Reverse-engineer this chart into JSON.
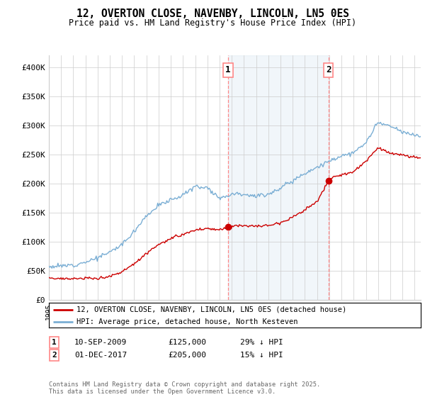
{
  "title": "12, OVERTON CLOSE, NAVENBY, LINCOLN, LN5 0ES",
  "subtitle": "Price paid vs. HM Land Registry's House Price Index (HPI)",
  "ylabel_ticks": [
    "£0",
    "£50K",
    "£100K",
    "£150K",
    "£200K",
    "£250K",
    "£300K",
    "£350K",
    "£400K"
  ],
  "ytick_values": [
    0,
    50000,
    100000,
    150000,
    200000,
    250000,
    300000,
    350000,
    400000
  ],
  "ylim": [
    0,
    420000
  ],
  "xlim_start": 1995.0,
  "xlim_end": 2025.5,
  "purchase1_date": 2009.7,
  "purchase1_price": 125000,
  "purchase2_date": 2017.92,
  "purchase2_price": 205000,
  "legend_line1": "12, OVERTON CLOSE, NAVENBY, LINCOLN, LN5 0ES (detached house)",
  "legend_line2": "HPI: Average price, detached house, North Kesteven",
  "footer": "Contains HM Land Registry data © Crown copyright and database right 2025.\nThis data is licensed under the Open Government Licence v3.0.",
  "color_red": "#cc0000",
  "color_blue": "#7aaed4",
  "color_vline": "#ff8888",
  "background_color": "#ffffff",
  "grid_color": "#cccccc",
  "hpi_anchors": [
    [
      1995.0,
      57000
    ],
    [
      1996.0,
      58000
    ],
    [
      1997.0,
      60000
    ],
    [
      1998.0,
      65000
    ],
    [
      1999.0,
      72000
    ],
    [
      2000.0,
      82000
    ],
    [
      2001.0,
      95000
    ],
    [
      2002.0,
      118000
    ],
    [
      2003.0,
      145000
    ],
    [
      2004.0,
      162000
    ],
    [
      2005.0,
      172000
    ],
    [
      2006.0,
      180000
    ],
    [
      2007.0,
      195000
    ],
    [
      2008.0,
      193000
    ],
    [
      2009.0,
      175000
    ],
    [
      2009.5,
      178000
    ],
    [
      2010.0,
      182000
    ],
    [
      2010.5,
      183000
    ],
    [
      2011.0,
      182000
    ],
    [
      2012.0,
      178000
    ],
    [
      2013.0,
      182000
    ],
    [
      2014.0,
      192000
    ],
    [
      2015.0,
      205000
    ],
    [
      2016.0,
      218000
    ],
    [
      2017.0,
      228000
    ],
    [
      2018.0,
      238000
    ],
    [
      2019.0,
      248000
    ],
    [
      2020.0,
      252000
    ],
    [
      2021.0,
      270000
    ],
    [
      2022.0,
      305000
    ],
    [
      2023.0,
      298000
    ],
    [
      2024.0,
      288000
    ],
    [
      2025.3,
      282000
    ]
  ],
  "red_anchors": [
    [
      1995.0,
      38000
    ],
    [
      1996.0,
      36500
    ],
    [
      1997.0,
      36000
    ],
    [
      1998.0,
      36500
    ],
    [
      1999.0,
      37000
    ],
    [
      2000.0,
      40000
    ],
    [
      2001.0,
      48000
    ],
    [
      2002.0,
      62000
    ],
    [
      2003.0,
      80000
    ],
    [
      2004.0,
      95000
    ],
    [
      2005.0,
      105000
    ],
    [
      2006.0,
      112000
    ],
    [
      2007.0,
      120000
    ],
    [
      2008.0,
      122000
    ],
    [
      2009.0,
      120000
    ],
    [
      2009.7,
      125000
    ],
    [
      2010.0,
      127000
    ],
    [
      2011.0,
      128000
    ],
    [
      2012.0,
      126000
    ],
    [
      2013.0,
      128000
    ],
    [
      2014.0,
      133000
    ],
    [
      2015.0,
      142000
    ],
    [
      2016.0,
      155000
    ],
    [
      2017.0,
      168000
    ],
    [
      2017.92,
      205000
    ],
    [
      2018.0,
      207000
    ],
    [
      2019.0,
      215000
    ],
    [
      2020.0,
      220000
    ],
    [
      2021.0,
      238000
    ],
    [
      2022.0,
      262000
    ],
    [
      2023.0,
      252000
    ],
    [
      2024.0,
      248000
    ],
    [
      2025.3,
      244000
    ]
  ]
}
